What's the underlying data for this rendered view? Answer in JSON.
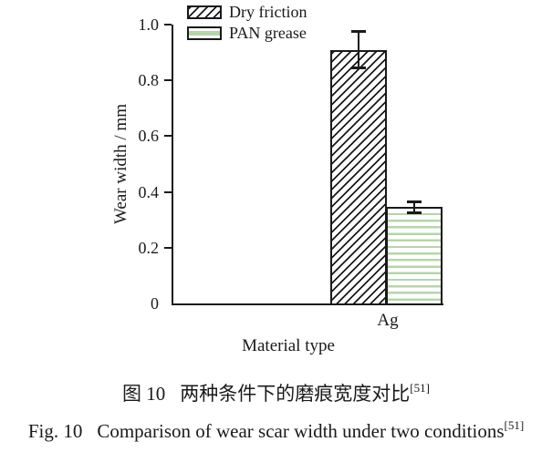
{
  "colors": {
    "ink": "#1a1a1a",
    "pan_stripe_green": "#b7d4ab",
    "background": "#ffffff"
  },
  "chart_data": {
    "type": "bar",
    "title": "",
    "xlabel": "Material type",
    "ylabel": "Wear width / mm",
    "categories": [
      "Ag"
    ],
    "series": [
      {
        "name": "Dry friction",
        "values": [
          0.91
        ],
        "errors": [
          0.07
        ],
        "pattern": "black-diagonal-hatch"
      },
      {
        "name": "PAN grease",
        "values": [
          0.345
        ],
        "errors": [
          0.025
        ],
        "pattern": "green-horizontal-stripes"
      }
    ],
    "ylim": [
      0,
      1.0
    ],
    "yticks": [
      0,
      0.2,
      0.4,
      0.6,
      0.8,
      1.0
    ],
    "ytick_labels": [
      "0",
      "0.2",
      "0.4",
      "0.6",
      "0.8",
      "1.0"
    ],
    "grid": false,
    "legend_position": "top-left-inside",
    "error_bars": true
  },
  "captions": {
    "zh": {
      "label": "图 10",
      "text": "两种条件下的磨痕宽度对比",
      "ref": "[51]"
    },
    "en": {
      "label": "Fig. 10",
      "text": "Comparison of wear scar width under two conditions",
      "ref": "[51]"
    }
  }
}
